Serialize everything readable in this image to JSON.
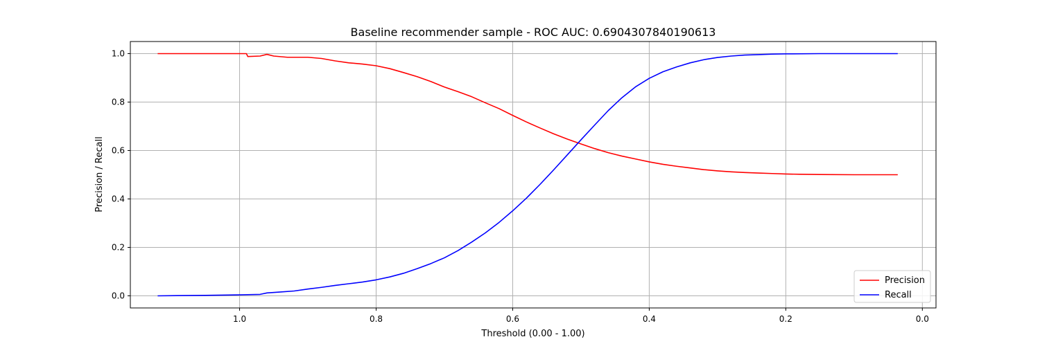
{
  "chart_data": {
    "type": "line",
    "title": "Baseline recommender sample - ROC AUC: 0.6904307840190613",
    "xlabel": "Threshold (0.00 - 1.00)",
    "ylabel": "Precision / Recall",
    "xlim": [
      1.16,
      -0.02
    ],
    "ylim": [
      -0.05,
      1.05
    ],
    "x_inverted": true,
    "grid": true,
    "legend_position": "bottom-right",
    "xticks": [
      1.0,
      0.8,
      0.6,
      0.4,
      0.2,
      0.0
    ],
    "xtick_labels": [
      "1.0",
      "0.8",
      "0.6",
      "0.4",
      "0.2",
      "0.0"
    ],
    "yticks": [
      0.0,
      0.2,
      0.4,
      0.6,
      0.8,
      1.0
    ],
    "ytick_labels": [
      "0.0",
      "0.2",
      "0.4",
      "0.6",
      "0.8",
      "1.0"
    ],
    "series": [
      {
        "name": "Precision",
        "color": "#ff0000",
        "points": [
          [
            1.12,
            1.0
          ],
          [
            1.0,
            1.0
          ],
          [
            0.99,
            1.0
          ],
          [
            0.988,
            0.988
          ],
          [
            0.97,
            0.99
          ],
          [
            0.96,
            0.997
          ],
          [
            0.95,
            0.99
          ],
          [
            0.93,
            0.985
          ],
          [
            0.9,
            0.985
          ],
          [
            0.88,
            0.98
          ],
          [
            0.86,
            0.97
          ],
          [
            0.84,
            0.962
          ],
          [
            0.82,
            0.957
          ],
          [
            0.8,
            0.95
          ],
          [
            0.78,
            0.938
          ],
          [
            0.76,
            0.922
          ],
          [
            0.74,
            0.905
          ],
          [
            0.72,
            0.885
          ],
          [
            0.7,
            0.862
          ],
          [
            0.68,
            0.843
          ],
          [
            0.66,
            0.822
          ],
          [
            0.64,
            0.797
          ],
          [
            0.62,
            0.773
          ],
          [
            0.6,
            0.745
          ],
          [
            0.58,
            0.718
          ],
          [
            0.56,
            0.693
          ],
          [
            0.54,
            0.669
          ],
          [
            0.52,
            0.647
          ],
          [
            0.5,
            0.627
          ],
          [
            0.48,
            0.608
          ],
          [
            0.46,
            0.591
          ],
          [
            0.44,
            0.577
          ],
          [
            0.42,
            0.565
          ],
          [
            0.4,
            0.553
          ],
          [
            0.38,
            0.543
          ],
          [
            0.36,
            0.535
          ],
          [
            0.34,
            0.528
          ],
          [
            0.32,
            0.521
          ],
          [
            0.3,
            0.516
          ],
          [
            0.28,
            0.512
          ],
          [
            0.26,
            0.509
          ],
          [
            0.24,
            0.507
          ],
          [
            0.22,
            0.505
          ],
          [
            0.2,
            0.503
          ],
          [
            0.18,
            0.502
          ],
          [
            0.15,
            0.501
          ],
          [
            0.1,
            0.5
          ],
          [
            0.036,
            0.5
          ]
        ]
      },
      {
        "name": "Recall",
        "color": "#0000ff",
        "points": [
          [
            1.12,
            0.0
          ],
          [
            1.05,
            0.002
          ],
          [
            1.0,
            0.004
          ],
          [
            0.97,
            0.006
          ],
          [
            0.96,
            0.012
          ],
          [
            0.94,
            0.016
          ],
          [
            0.92,
            0.02
          ],
          [
            0.9,
            0.028
          ],
          [
            0.88,
            0.035
          ],
          [
            0.86,
            0.043
          ],
          [
            0.84,
            0.05
          ],
          [
            0.82,
            0.057
          ],
          [
            0.8,
            0.066
          ],
          [
            0.78,
            0.078
          ],
          [
            0.76,
            0.093
          ],
          [
            0.74,
            0.112
          ],
          [
            0.72,
            0.133
          ],
          [
            0.7,
            0.157
          ],
          [
            0.68,
            0.187
          ],
          [
            0.66,
            0.222
          ],
          [
            0.64,
            0.26
          ],
          [
            0.62,
            0.303
          ],
          [
            0.6,
            0.351
          ],
          [
            0.58,
            0.403
          ],
          [
            0.56,
            0.46
          ],
          [
            0.54,
            0.52
          ],
          [
            0.52,
            0.582
          ],
          [
            0.5,
            0.644
          ],
          [
            0.48,
            0.705
          ],
          [
            0.46,
            0.765
          ],
          [
            0.44,
            0.818
          ],
          [
            0.42,
            0.863
          ],
          [
            0.4,
            0.898
          ],
          [
            0.38,
            0.925
          ],
          [
            0.36,
            0.945
          ],
          [
            0.34,
            0.962
          ],
          [
            0.32,
            0.975
          ],
          [
            0.3,
            0.984
          ],
          [
            0.28,
            0.99
          ],
          [
            0.26,
            0.994
          ],
          [
            0.24,
            0.996
          ],
          [
            0.22,
            0.998
          ],
          [
            0.2,
            0.999
          ],
          [
            0.15,
            1.0
          ],
          [
            0.1,
            1.0
          ],
          [
            0.036,
            1.0
          ]
        ]
      }
    ]
  }
}
